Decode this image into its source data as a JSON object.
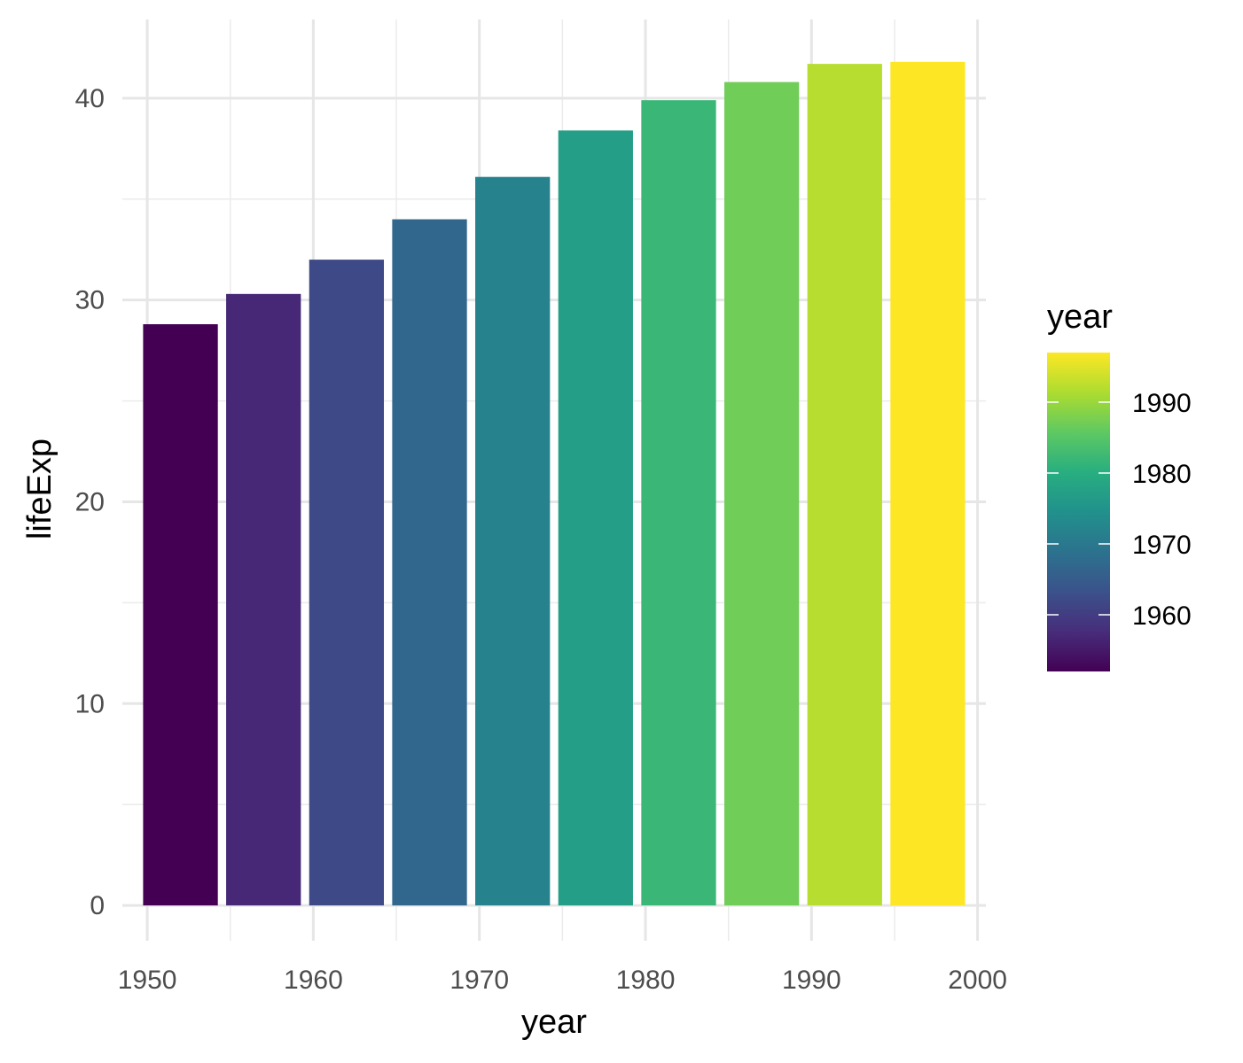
{
  "chart_data": {
    "type": "bar",
    "xlabel": "year",
    "ylabel": "lifeExp",
    "x": [
      1952,
      1957,
      1962,
      1967,
      1972,
      1977,
      1982,
      1987,
      1992,
      1997
    ],
    "values": [
      28.8,
      30.3,
      32.0,
      34.0,
      36.1,
      38.4,
      39.9,
      40.8,
      41.7,
      41.8
    ],
    "xlim": [
      1948.5,
      2000.5
    ],
    "ylim": [
      -1.75,
      43.9
    ],
    "x_ticks": [
      1950,
      1960,
      1970,
      1980,
      1990,
      2000
    ],
    "y_ticks": [
      0,
      10,
      20,
      30,
      40
    ],
    "grid": true,
    "fill_scale": "viridis",
    "legend": {
      "title": "year",
      "position": "right",
      "type": "colorbar",
      "range": [
        1952,
        1997
      ],
      "breaks": [
        1960,
        1970,
        1980,
        1990
      ]
    }
  }
}
